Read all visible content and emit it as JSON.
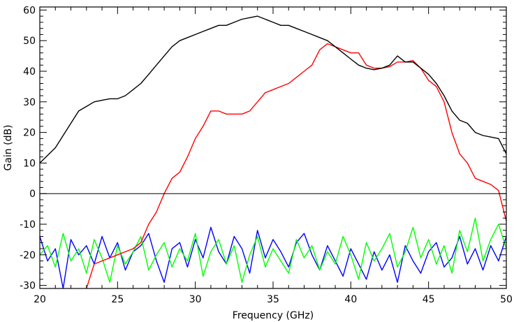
{
  "chart_data": {
    "type": "line",
    "title": "",
    "xlabel": "Frequency (GHz)",
    "ylabel": "Gain (dB)",
    "xlim": [
      20,
      50
    ],
    "ylim": [
      -31,
      61
    ],
    "xticks": [
      20,
      25,
      30,
      35,
      40,
      45,
      50
    ],
    "xtick_labels": [
      "20",
      "25",
      "30",
      "35",
      "40",
      "45",
      "50"
    ],
    "yticks": [
      -30,
      -20,
      -10,
      0,
      10,
      20,
      30,
      40,
      50,
      60
    ],
    "ytick_labels": [
      "-30",
      "-20",
      "-10",
      "0",
      "10",
      "20",
      "30",
      "40",
      "50",
      "60"
    ],
    "grid": false,
    "legend": "none",
    "reference_line": {
      "y": 0,
      "color": "#000000"
    },
    "series": [
      {
        "color": "#000000",
        "x": [
          20,
          20.5,
          21,
          21.5,
          22,
          22.5,
          23,
          23.5,
          24,
          24.5,
          25,
          25.5,
          26,
          26.5,
          27,
          27.5,
          28,
          28.5,
          29,
          29.5,
          30,
          30.5,
          31,
          31.5,
          32,
          32.5,
          33,
          33.5,
          34,
          34.5,
          35,
          35.5,
          36,
          36.5,
          37,
          37.5,
          38,
          38.5,
          39,
          39.5,
          40,
          40.5,
          41,
          41.5,
          42,
          42.5,
          43,
          43.5,
          44,
          44.5,
          45,
          45.5,
          46,
          46.5,
          47,
          47.5,
          48,
          48.5,
          49,
          49.5,
          50
        ],
        "y": [
          10,
          12.5,
          15,
          19,
          23,
          27,
          28.5,
          30,
          30.5,
          31,
          31,
          32,
          34,
          36,
          39,
          42,
          45,
          48,
          50,
          51,
          52,
          53,
          54,
          55,
          55,
          56,
          57,
          57.5,
          58,
          57,
          56,
          55,
          55,
          54,
          53,
          52,
          51,
          50,
          48,
          46,
          44,
          42,
          41,
          40.5,
          41,
          42,
          45,
          43,
          43,
          41,
          39,
          36,
          32,
          27,
          24,
          23,
          20,
          19,
          18.5,
          18,
          13
        ]
      },
      {
        "color": "#ff0000",
        "x": [
          23,
          23.5,
          24,
          24.5,
          25,
          25.5,
          26,
          26.5,
          27,
          27.5,
          28,
          28.5,
          29,
          29.5,
          30,
          30.5,
          31,
          31.5,
          32,
          32.5,
          33,
          33.5,
          34,
          34.5,
          35,
          35.5,
          36,
          36.5,
          37,
          37.5,
          38,
          38.5,
          39,
          39.5,
          40,
          40.5,
          41,
          41.5,
          42,
          42.5,
          43,
          43.5,
          44,
          44.5,
          45,
          45.5,
          46,
          46.5,
          47,
          47.5,
          48,
          48.5,
          49,
          49.5,
          50
        ],
        "y": [
          -31,
          -23,
          -22,
          -21,
          -20,
          -19,
          -18,
          -16,
          -10,
          -6,
          0,
          5,
          7,
          12,
          18,
          22,
          27,
          27,
          26,
          26,
          26,
          27,
          30,
          33,
          34,
          35,
          36,
          38,
          40,
          42,
          47,
          49,
          48,
          47,
          46,
          46,
          42,
          41,
          41,
          41.5,
          43,
          43,
          43.5,
          41,
          37,
          35,
          30,
          20,
          13,
          10,
          5,
          4,
          3,
          1,
          -9
        ]
      },
      {
        "color": "#0000ff",
        "x": [
          20,
          20.5,
          21,
          21.5,
          22,
          22.5,
          23,
          23.5,
          24,
          24.5,
          25,
          25.5,
          26,
          26.5,
          27,
          27.5,
          28,
          28.5,
          29,
          29.5,
          30,
          30.5,
          31,
          31.5,
          32,
          32.5,
          33,
          33.5,
          34,
          34.5,
          35,
          35.5,
          36,
          36.5,
          37,
          37.5,
          38,
          38.5,
          39,
          39.5,
          40,
          40.5,
          41,
          41.5,
          42,
          42.5,
          43,
          43.5,
          44,
          44.5,
          45,
          45.5,
          46,
          46.5,
          47,
          47.5,
          48,
          48.5,
          49,
          49.5,
          50
        ],
        "y": [
          -14,
          -22,
          -18,
          -31,
          -15,
          -20,
          -17,
          -23,
          -14,
          -21,
          -16,
          -25,
          -19,
          -17,
          -13,
          -22,
          -29,
          -18,
          -16,
          -24,
          -15,
          -21,
          -11,
          -19,
          -23,
          -14,
          -18,
          -26,
          -12,
          -21,
          -15,
          -19,
          -24,
          -16,
          -13,
          -20,
          -25,
          -17,
          -22,
          -27,
          -18,
          -23,
          -28,
          -19,
          -25,
          -20,
          -29,
          -17,
          -22,
          -26,
          -19,
          -16,
          -24,
          -21,
          -14,
          -23,
          -18,
          -25,
          -17,
          -22,
          -14
        ]
      },
      {
        "color": "#00ff00",
        "x": [
          20,
          20.5,
          21,
          21.5,
          22,
          22.5,
          23,
          23.5,
          24,
          24.5,
          25,
          25.5,
          26,
          26.5,
          27,
          27.5,
          28,
          28.5,
          29,
          29.5,
          30,
          30.5,
          31,
          31.5,
          32,
          32.5,
          33,
          33.5,
          34,
          34.5,
          35,
          35.5,
          36,
          36.5,
          37,
          37.5,
          38,
          38.5,
          39,
          39.5,
          40,
          40.5,
          41,
          41.5,
          42,
          42.5,
          43,
          43.5,
          44,
          44.5,
          45,
          45.5,
          46,
          46.5,
          47,
          47.5,
          48,
          48.5,
          49,
          49.5,
          50
        ],
        "y": [
          -20,
          -17,
          -24,
          -13,
          -22,
          -18,
          -26,
          -15,
          -21,
          -29,
          -17,
          -23,
          -19,
          -14,
          -25,
          -20,
          -16,
          -24,
          -18,
          -22,
          -13,
          -27,
          -19,
          -15,
          -23,
          -17,
          -29,
          -20,
          -14,
          -24,
          -18,
          -22,
          -26,
          -15,
          -21,
          -17,
          -25,
          -19,
          -23,
          -14,
          -20,
          -28,
          -16,
          -22,
          -18,
          -13,
          -24,
          -19,
          -11,
          -21,
          -15,
          -23,
          -17,
          -26,
          -12,
          -19,
          -8,
          -22,
          -15,
          -10,
          -18
        ]
      }
    ]
  }
}
